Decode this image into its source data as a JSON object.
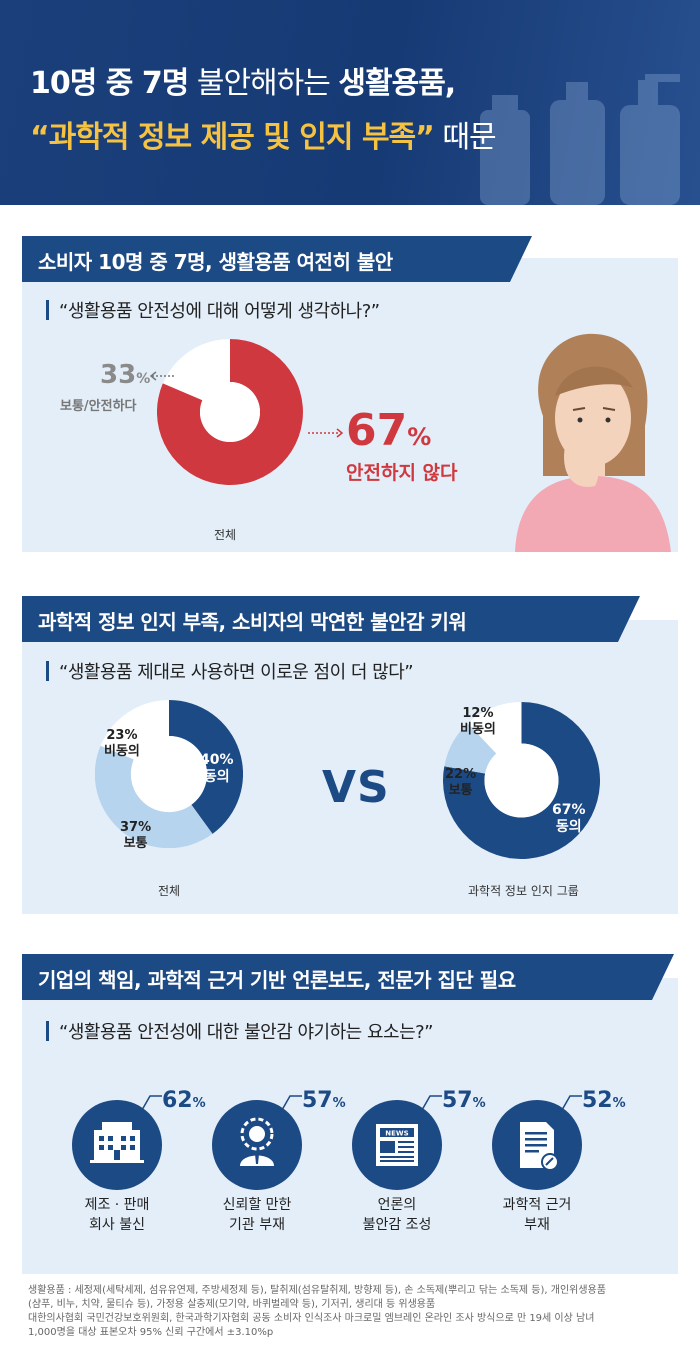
{
  "header": {
    "line1_bold_a": "10명 중 7명",
    "line1_light": " 불안해하는 ",
    "line1_bold_b": "생활용품,",
    "line2_yellow": "“과학적 정보 제공 및 인지 부족”",
    "line2_light": " 때문"
  },
  "section1": {
    "banner": "소비자 10명 중 7명, 생활용품 여전히 불안",
    "question": "“생활용품 안전성에 대해 어떻게 생각하나?”",
    "donut_caption": "전체",
    "unsafe_pct": "67",
    "unsafe_label": "안전하지 않다",
    "safe_pct": "33",
    "safe_label": "보통/안전하다",
    "pct_sign": "%"
  },
  "section2": {
    "banner": "과학적 정보 인지 부족, 소비자의 막연한 불안감 키워",
    "question": "“생활용품 제대로 사용하면 이로운 점이 더 많다”",
    "vs": "VS",
    "left": {
      "caption": "전체",
      "agree_pct": "40%",
      "agree_label": "동의",
      "disagree_pct": "23%",
      "disagree_label": "비동의",
      "neutral_pct": "37%",
      "neutral_label": "보통"
    },
    "right": {
      "caption": "과학적 정보 인지 그룹",
      "agree_pct": "67%",
      "agree_label": "동의",
      "disagree_pct": "12%",
      "disagree_label": "비동의",
      "neutral_pct": "22%",
      "neutral_label": "보통"
    }
  },
  "section3": {
    "banner": "기업의 책임, 과학적 근거 기반 언론보도, 전문가 집단 필요",
    "question": "“생활용품 안전성에 대한 불안감 야기하는 요소는?”",
    "items": [
      {
        "pct": "62",
        "line1": "제조 · 판매",
        "line2": "회사 불신",
        "icon": "building-icon"
      },
      {
        "pct": "57",
        "line1": "신뢰할 만한",
        "line2": "기관 부재",
        "icon": "expert-icon"
      },
      {
        "pct": "57",
        "line1": "언론의",
        "line2": "불안감 조성",
        "icon": "newspaper-icon"
      },
      {
        "pct": "52",
        "line1": "과학적 근거",
        "line2": "부재",
        "icon": "document-icon"
      }
    ],
    "pct_sign": "%",
    "news_text": "NEWS"
  },
  "footnote": {
    "line1": "생활용품 : 세정제(세탁세제, 섬유유연제, 주방세정제 등), 탈취제(섬유탈취제, 방향제 등), 손 소독제(뿌리고 닦는 소독제 등), 개인위생용품",
    "line2": "(샴푸, 비누, 치약, 물티슈 등), 가정용 살충제(모기약, 바퀴벌레약 등), 기저귀, 생리대 등 위생용품",
    "line3": "대한의사협회 국민건강보호위원회, 한국과학기자협회 공동 소비자 인식조사 마크로밀 엠브레인 온라인 조사 방식으로 만 19세 이상 남녀",
    "line4": "1,000명을 대상 표본오차 95% 신뢰 구간에서 ±3.10%p"
  },
  "colors": {
    "navy": "#1c4a85",
    "red": "#d0383f",
    "light_blue": "#b7d4ee",
    "panel": "#e3eef8",
    "yellow": "#f5c242"
  }
}
